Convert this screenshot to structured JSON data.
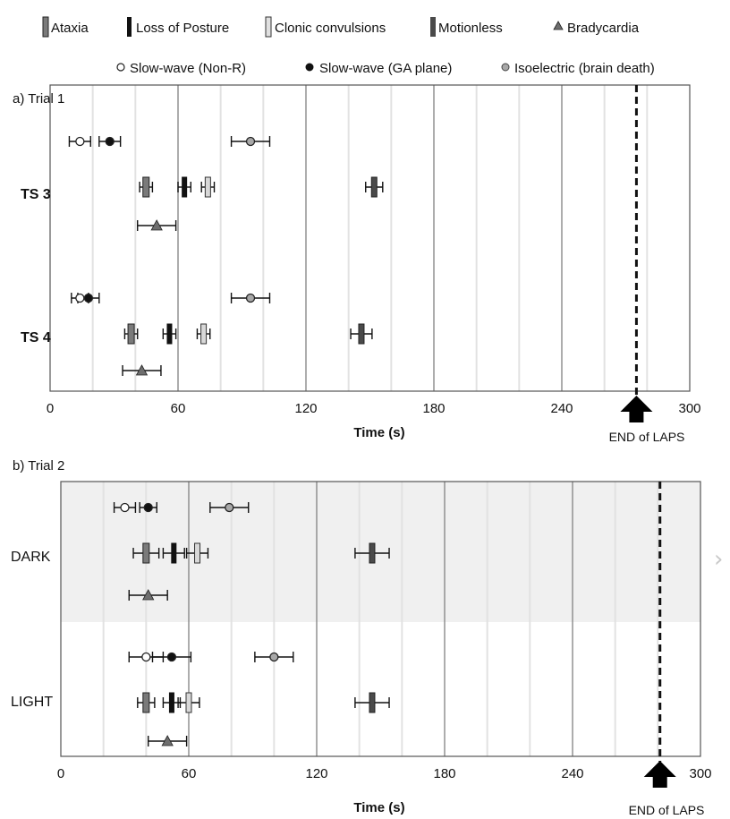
{
  "legend": {
    "items": [
      {
        "key": "ataxia",
        "label": "Ataxia"
      },
      {
        "key": "lop",
        "label": "Loss of Posture"
      },
      {
        "key": "clonic",
        "label": "Clonic convulsions"
      },
      {
        "key": "motionless",
        "label": "Motionless"
      },
      {
        "key": "brady",
        "label": "Bradycardia"
      },
      {
        "key": "sw_nonr",
        "label": "Slow-wave (Non-R)"
      },
      {
        "key": "sw_ga",
        "label": "Slow-wave (GA plane)"
      },
      {
        "key": "iso",
        "label": "Isoelectric (brain death)"
      }
    ]
  },
  "colors": {
    "ataxia": "#7a7a7a",
    "lop": "#111111",
    "clonic": "#d8d8d8",
    "motionless": "#4a4a4a",
    "brady": "#6e6e6e",
    "sw_nonr": "#ffffff",
    "sw_ga": "#111111",
    "iso": "#a8a8a8",
    "band_shade": "#f0f0f0"
  },
  "next_icon": "chevron-right-icon",
  "chart_data": [
    {
      "type": "scatter",
      "title": "a) Trial 1",
      "xlabel": "Time (s)",
      "xlim": [
        0,
        300
      ],
      "xticks": [
        "0",
        "60",
        "120",
        "180",
        "240",
        "300"
      ],
      "end_marker": {
        "x": 275,
        "label": "END of LAPS"
      },
      "groups": [
        {
          "name": "TS 3",
          "events": [
            {
              "key": "sw_nonr",
              "mean": 14,
              "err": 5
            },
            {
              "key": "sw_ga",
              "mean": 28,
              "err": 5
            },
            {
              "key": "iso",
              "mean": 94,
              "err": 9
            },
            {
              "key": "ataxia",
              "mean": 45,
              "err": 3
            },
            {
              "key": "lop",
              "mean": 63,
              "err": 3
            },
            {
              "key": "clonic",
              "mean": 74,
              "err": 3
            },
            {
              "key": "motionless",
              "mean": 152,
              "err": 4
            },
            {
              "key": "brady",
              "mean": 50,
              "err": 9
            }
          ]
        },
        {
          "name": "TS 4",
          "events": [
            {
              "key": "sw_nonr",
              "mean": 14,
              "err": 4
            },
            {
              "key": "sw_ga",
              "mean": 18,
              "err": 5
            },
            {
              "key": "iso",
              "mean": 94,
              "err": 9
            },
            {
              "key": "ataxia",
              "mean": 38,
              "err": 3
            },
            {
              "key": "lop",
              "mean": 56,
              "err": 3
            },
            {
              "key": "clonic",
              "mean": 72,
              "err": 3
            },
            {
              "key": "motionless",
              "mean": 146,
              "err": 5
            },
            {
              "key": "brady",
              "mean": 43,
              "err": 9
            }
          ]
        }
      ]
    },
    {
      "type": "scatter",
      "title": "b) Trial 2",
      "xlabel": "Time (s)",
      "xlim": [
        0,
        300
      ],
      "xticks": [
        "0",
        "60",
        "120",
        "180",
        "240",
        "300"
      ],
      "end_marker": {
        "x": 281,
        "label": "END of LAPS"
      },
      "groups": [
        {
          "name": "DARK",
          "events": [
            {
              "key": "sw_nonr",
              "mean": 30,
              "err": 5
            },
            {
              "key": "sw_ga",
              "mean": 41,
              "err": 4
            },
            {
              "key": "iso",
              "mean": 79,
              "err": 9
            },
            {
              "key": "ataxia",
              "mean": 40,
              "err": 6
            },
            {
              "key": "lop",
              "mean": 53,
              "err": 5
            },
            {
              "key": "clonic",
              "mean": 64,
              "err": 5
            },
            {
              "key": "motionless",
              "mean": 146,
              "err": 8
            },
            {
              "key": "brady",
              "mean": 41,
              "err": 9
            }
          ]
        },
        {
          "name": "LIGHT",
          "events": [
            {
              "key": "sw_nonr",
              "mean": 40,
              "err": 8
            },
            {
              "key": "sw_ga",
              "mean": 52,
              "err": 9
            },
            {
              "key": "iso",
              "mean": 100,
              "err": 9
            },
            {
              "key": "ataxia",
              "mean": 40,
              "err": 4
            },
            {
              "key": "lop",
              "mean": 52,
              "err": 4
            },
            {
              "key": "clonic",
              "mean": 60,
              "err": 5
            },
            {
              "key": "motionless",
              "mean": 146,
              "err": 8
            },
            {
              "key": "brady",
              "mean": 50,
              "err": 9
            }
          ]
        }
      ]
    }
  ]
}
